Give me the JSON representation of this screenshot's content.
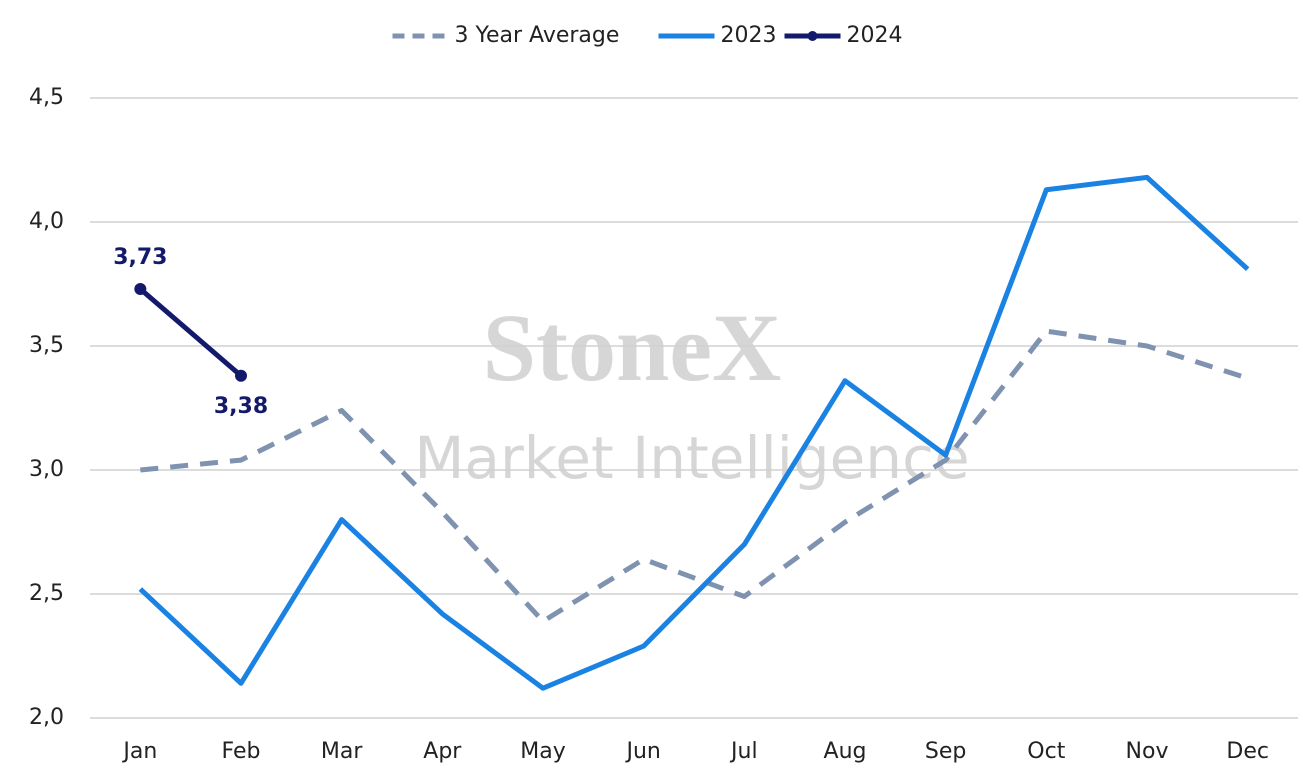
{
  "chart_data": {
    "type": "line",
    "watermark": {
      "brand": "StoneX",
      "tagline": "Market Intelligence"
    },
    "categories": [
      "Jan",
      "Feb",
      "Mar",
      "Apr",
      "May",
      "Jun",
      "Jul",
      "Aug",
      "Sep",
      "Oct",
      "Nov",
      "Dec"
    ],
    "series": [
      {
        "name": "3 Year Average",
        "color": "#7f93b0",
        "dashed": true,
        "markers": false,
        "values": [
          3.0,
          3.04,
          3.24,
          2.83,
          2.39,
          2.64,
          2.49,
          2.79,
          3.04,
          3.56,
          3.5,
          3.37
        ]
      },
      {
        "name": "2023",
        "color": "#1a82e2",
        "dashed": false,
        "markers": false,
        "values": [
          2.52,
          2.14,
          2.8,
          2.42,
          2.12,
          2.29,
          2.7,
          3.36,
          3.06,
          4.13,
          4.18,
          3.81
        ]
      },
      {
        "name": "2024",
        "color": "#141a6b",
        "dashed": false,
        "markers": true,
        "values": [
          3.73,
          3.38,
          null,
          null,
          null,
          null,
          null,
          null,
          null,
          null,
          null,
          null
        ],
        "value_labels": [
          "3,73",
          "3,38",
          null,
          null,
          null,
          null,
          null,
          null,
          null,
          null,
          null,
          null
        ]
      }
    ],
    "ylim": [
      2.0,
      4.5
    ],
    "yticks": [
      {
        "value": 2.0,
        "label": "2,0"
      },
      {
        "value": 2.5,
        "label": "2,5"
      },
      {
        "value": 3.0,
        "label": "3,0"
      },
      {
        "value": 3.5,
        "label": "3,5"
      },
      {
        "value": 4.0,
        "label": "4,0"
      },
      {
        "value": 4.5,
        "label": "4,5"
      }
    ],
    "grid": true,
    "legend": "top"
  }
}
